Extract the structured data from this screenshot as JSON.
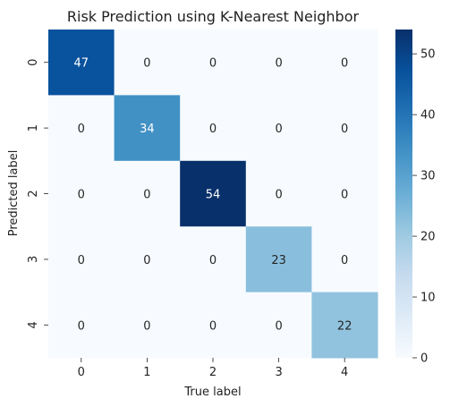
{
  "chart_data": {
    "type": "heatmap",
    "title": "Risk Prediction using K-Nearest Neighbor",
    "xlabel": "True label",
    "ylabel": "Predicted label",
    "x_categories": [
      "0",
      "1",
      "2",
      "3",
      "4"
    ],
    "y_categories": [
      "0",
      "1",
      "2",
      "3",
      "4"
    ],
    "values": [
      [
        47,
        0,
        0,
        0,
        0
      ],
      [
        0,
        34,
        0,
        0,
        0
      ],
      [
        0,
        0,
        54,
        0,
        0
      ],
      [
        0,
        0,
        0,
        23,
        0
      ],
      [
        0,
        0,
        0,
        0,
        22
      ]
    ],
    "colormap": "Blues",
    "color_range": [
      0,
      54
    ],
    "colorbar_ticks": [
      0,
      10,
      20,
      30,
      40,
      50
    ],
    "colors": {
      "low": "#f7fbff",
      "high": "#08306b",
      "text_dark": "#262626",
      "text_light": "#ffffff"
    }
  }
}
